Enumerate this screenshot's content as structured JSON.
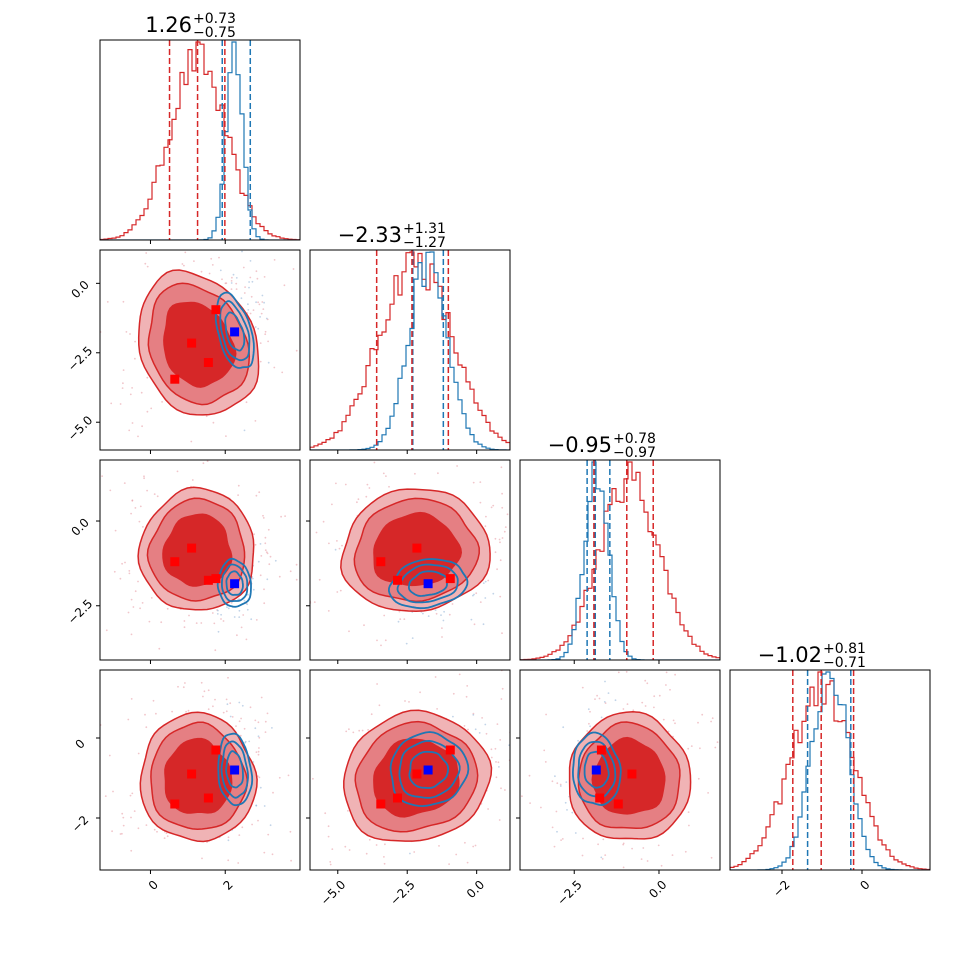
{
  "chart_data": {
    "type": "corner",
    "parameters": 4,
    "colors": {
      "posterior_a": "#d62728",
      "posterior_b": "#1f77b4",
      "marker_a": "#ff0000",
      "marker_b": "#0000ff"
    },
    "titles": [
      {
        "median": "1.26",
        "plus": "+0.73",
        "minus": "−0.75"
      },
      {
        "median": "−2.33",
        "plus": "+1.31",
        "minus": "−1.27"
      },
      {
        "median": "−0.95",
        "plus": "+0.78",
        "minus": "−0.97"
      },
      {
        "median": "−1.02",
        "plus": "+0.81",
        "minus": "−0.71"
      }
    ],
    "axes": [
      {
        "range": [
          -1.35,
          4.0
        ],
        "ticks": [
          0,
          2
        ],
        "tick_labels": [
          "0",
          "2"
        ]
      },
      {
        "range": [
          -6.0,
          1.2
        ],
        "ticks": [
          -5.0,
          -2.5,
          0.0
        ],
        "tick_labels": [
          "−5.0",
          "−2.5",
          "0.0"
        ]
      },
      {
        "range": [
          -4.1,
          1.8
        ],
        "ticks": [
          -2.5,
          0.0
        ],
        "tick_labels": [
          "−2.5",
          "0.0"
        ]
      },
      {
        "range": [
          -3.3,
          1.7
        ],
        "ticks": [
          -2,
          0
        ],
        "tick_labels": [
          "−2",
          "0"
        ]
      }
    ],
    "posterior_a": {
      "mean": [
        1.26,
        -2.2,
        -0.88,
        -1.0
      ],
      "sd": [
        0.75,
        1.3,
        0.88,
        0.78
      ],
      "quantiles": [
        [
          0.51,
          1.26,
          1.99
        ],
        [
          -3.6,
          -2.33,
          -1.02
        ],
        [
          -1.92,
          -0.95,
          -0.17
        ],
        [
          -1.73,
          -1.02,
          -0.21
        ]
      ],
      "markers": [
        [
          0.65,
          -3.45,
          -1.2,
          -1.65
        ],
        [
          1.1,
          -2.15,
          -0.8,
          -0.9
        ],
        [
          1.55,
          -2.85,
          -1.75,
          -1.5
        ],
        [
          1.75,
          -0.95,
          -1.7,
          -0.3
        ]
      ]
    },
    "posterior_b": {
      "mean": [
        2.25,
        -1.75,
        -1.85,
        -0.8
      ],
      "sd": [
        0.22,
        0.7,
        0.35,
        0.45
      ],
      "quantiles": [
        [
          1.92,
          null,
          2.67
        ],
        [
          -2.3,
          null,
          -1.2
        ],
        [
          -2.12,
          -1.88,
          -1.45
        ],
        [
          -1.36,
          null,
          -0.28
        ]
      ],
      "marker": [
        2.25,
        -1.75,
        -1.85,
        -0.8
      ]
    }
  }
}
